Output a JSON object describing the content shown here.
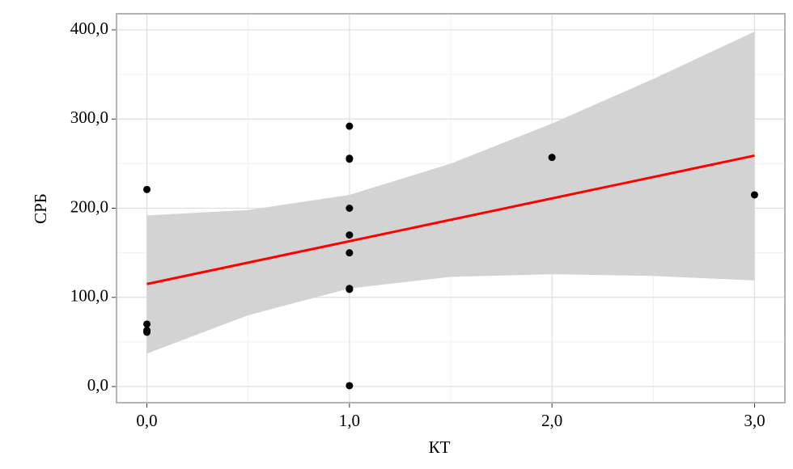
{
  "chart_data": {
    "type": "scatter",
    "x_label": "КТ",
    "y_label": "СРБ",
    "xlim": [
      -0.15,
      3.15
    ],
    "ylim": [
      -18.1,
      418.1
    ],
    "xticks": [
      {
        "value": 0,
        "label": "0,0"
      },
      {
        "value": 1,
        "label": "1,0"
      },
      {
        "value": 2,
        "label": "2,0"
      },
      {
        "value": 3,
        "label": "3,0"
      }
    ],
    "yticks": [
      {
        "value": 0,
        "label": "0,0"
      },
      {
        "value": 100,
        "label": "100,0"
      },
      {
        "value": 200,
        "label": "200,0"
      },
      {
        "value": 300,
        "label": "300,0"
      },
      {
        "value": 400,
        "label": "400,0"
      }
    ],
    "minor_xticks": [
      0.5,
      1.5,
      2.5
    ],
    "minor_yticks": [
      50,
      150,
      250,
      350
    ],
    "grid": true,
    "scatter": {
      "color": "#000000",
      "x": [
        0,
        0,
        0,
        0,
        1,
        1,
        1,
        1,
        1,
        1,
        1,
        1,
        1,
        2,
        3
      ],
      "y": [
        221,
        70,
        63,
        61,
        292,
        256,
        255,
        200,
        170,
        150,
        110,
        109,
        1,
        257,
        215
      ]
    },
    "fit": {
      "color": "#ff0000",
      "x": [
        0,
        3
      ],
      "y": [
        115,
        259
      ]
    },
    "band": {
      "color": "#d3d3d3",
      "x": [
        0,
        0.5,
        1,
        1.5,
        2,
        2.5,
        3
      ],
      "upper": [
        192,
        198,
        215,
        250,
        295,
        345,
        398
      ],
      "lower": [
        37,
        80,
        110,
        123,
        126,
        124,
        119
      ]
    }
  }
}
